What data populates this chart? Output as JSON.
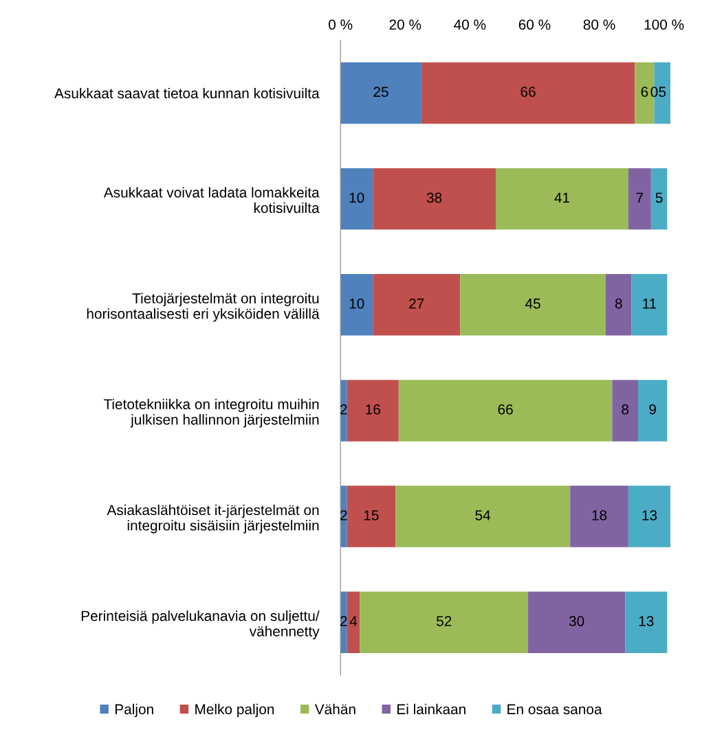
{
  "chart_data": {
    "type": "bar",
    "orientation": "horizontal",
    "stacked": true,
    "data_labels": true,
    "grid": false,
    "legend": "bottom",
    "categories": [
      "Asukkaat saavat tietoa kunnan kotisivuilta",
      "Asukkaat voivat ladata lomakkeita kotisivuilta",
      "Tietojärjestelmät on integroitu horisontaalisesti eri yksiköiden välillä",
      "Tietotekniikka on integroitu muihin julkisen hallinnon järjestelmiin",
      "Asiakaslähtöiset it-järjestelmät on integroitu sisäisiin järjestelmiin",
      "Perinteisiä palvelukanavia on suljettu/ vähennetty"
    ],
    "series": [
      {
        "name": "Paljon",
        "color": "#4f81bd",
        "values": [
          25,
          10,
          10,
          2,
          2,
          2
        ]
      },
      {
        "name": "Melko paljon",
        "color": "#c0504d",
        "values": [
          66,
          38,
          27,
          16,
          15,
          4
        ]
      },
      {
        "name": "Vähän",
        "color": "#9bbb59",
        "values": [
          6,
          41,
          45,
          66,
          54,
          52
        ]
      },
      {
        "name": "Ei lainkaan",
        "color": "#8064a2",
        "values": [
          0,
          7,
          8,
          8,
          18,
          30
        ]
      },
      {
        "name": "En osaa sanoa",
        "color": "#4bacc6",
        "values": [
          5,
          5,
          11,
          9,
          13,
          13
        ]
      }
    ],
    "xlim": [
      0,
      102
    ],
    "xticks": [
      {
        "value": 0,
        "label": "0 %"
      },
      {
        "value": 20,
        "label": "20 %"
      },
      {
        "value": 40,
        "label": "40 %"
      },
      {
        "value": 60,
        "label": "60 %"
      },
      {
        "value": 80,
        "label": "80 %"
      },
      {
        "value": 100,
        "label": "100 %"
      }
    ]
  }
}
